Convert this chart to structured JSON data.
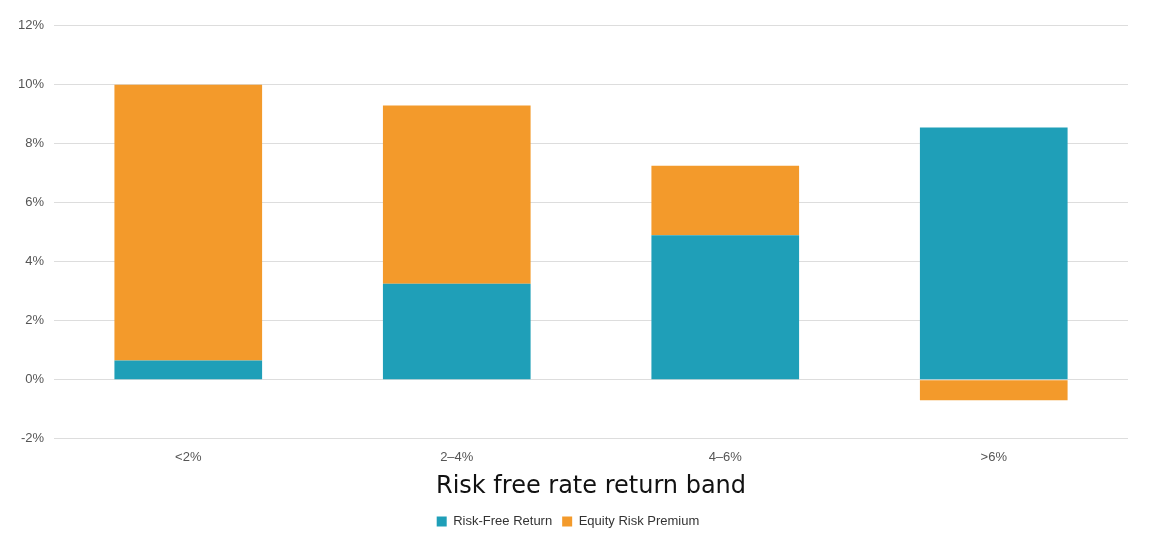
{
  "chart_data": {
    "type": "bar",
    "stacked": true,
    "xlabel": "Risk free rate return band",
    "categories": [
      "<2%",
      "2–4%",
      "4–6%",
      ">6%"
    ],
    "series": [
      {
        "name": "Risk-Free Return",
        "color": "#1f9fb8",
        "values": [
          0.65,
          3.25,
          4.9,
          8.55
        ]
      },
      {
        "name": "Equity Risk Premium",
        "color": "#f39a2b",
        "values": [
          9.35,
          6.05,
          2.35,
          -0.7
        ]
      }
    ],
    "ylim": [
      -2,
      12
    ],
    "yticks": [
      {
        "value": -2,
        "label": "-2%"
      },
      {
        "value": 0,
        "label": "0%"
      },
      {
        "value": 2,
        "label": "2%"
      },
      {
        "value": 4,
        "label": "4%"
      },
      {
        "value": 6,
        "label": "6%"
      },
      {
        "value": 8,
        "label": "8%"
      },
      {
        "value": 10,
        "label": "10%"
      },
      {
        "value": 12,
        "label": "12%"
      }
    ],
    "grid": "y",
    "legend": "bottom"
  }
}
